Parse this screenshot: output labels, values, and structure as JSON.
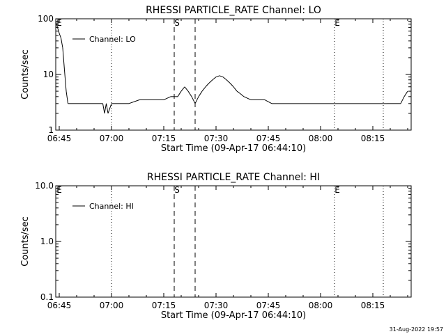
{
  "footer_timestamp": "31-Aug-2022 19:57",
  "chart_data": [
    {
      "type": "line",
      "title": "RHESSI PARTICLE_RATE Channel: LO",
      "xlabel": "Start Time (09-Apr-17 06:44:10)",
      "ylabel": "Counts/sec",
      "yscale": "log",
      "ylim": [
        1,
        100
      ],
      "xlim_minutes_after_0644": [
        0,
        102
      ],
      "xticks": [
        "06:45",
        "07:00",
        "07:15",
        "07:30",
        "07:45",
        "08:00",
        "08:15"
      ],
      "yticks": [
        "1",
        "10",
        "100"
      ],
      "legend": {
        "position": "top-left",
        "entries": [
          "Channel: LO"
        ]
      },
      "markers": [
        {
          "label": "E",
          "time": "06:44",
          "style": "edge"
        },
        {
          "label": "",
          "time": "07:00",
          "style": "dotted"
        },
        {
          "label": "S",
          "time": "07:18",
          "style": "dashed"
        },
        {
          "label": "",
          "time": "07:24",
          "style": "dashed"
        },
        {
          "label": "E",
          "time": "08:04",
          "style": "dotted"
        },
        {
          "label": "",
          "time": "08:18",
          "style": "dotted"
        }
      ],
      "series": [
        {
          "name": "Channel: LO",
          "points": [
            [
              0,
              90
            ],
            [
              0.5,
              70
            ],
            [
              1,
              55
            ],
            [
              1.5,
              45
            ],
            [
              2,
              30
            ],
            [
              2.5,
              12
            ],
            [
              3,
              5
            ],
            [
              3.5,
              3
            ],
            [
              5,
              3
            ],
            [
              8,
              3
            ],
            [
              11,
              3
            ],
            [
              13.5,
              3
            ],
            [
              14,
              2
            ],
            [
              14.5,
              3
            ],
            [
              15,
              2
            ],
            [
              16,
              3
            ],
            [
              18,
              3
            ],
            [
              21,
              3
            ],
            [
              24,
              3.5
            ],
            [
              27,
              3.5
            ],
            [
              31,
              3.5
            ],
            [
              33,
              4
            ],
            [
              35,
              4
            ],
            [
              36,
              5
            ],
            [
              37,
              6
            ],
            [
              38,
              5
            ],
            [
              39,
              4
            ],
            [
              40,
              3
            ],
            [
              41,
              4
            ],
            [
              42,
              5
            ],
            [
              43,
              6
            ],
            [
              44,
              7
            ],
            [
              45,
              8
            ],
            [
              46,
              9
            ],
            [
              47,
              9.5
            ],
            [
              48,
              9
            ],
            [
              49,
              8
            ],
            [
              50,
              7
            ],
            [
              51,
              6
            ],
            [
              52,
              5
            ],
            [
              53,
              4.5
            ],
            [
              54,
              4
            ],
            [
              56,
              3.5
            ],
            [
              60,
              3.5
            ],
            [
              62,
              3
            ],
            [
              66,
              3
            ],
            [
              70,
              3
            ],
            [
              75,
              3
            ],
            [
              80,
              3
            ],
            [
              85,
              3
            ],
            [
              90,
              3
            ],
            [
              95,
              3
            ],
            [
              98,
              3
            ],
            [
              99,
              3
            ],
            [
              100,
              4
            ],
            [
              101,
              5
            ]
          ]
        }
      ]
    },
    {
      "type": "line",
      "title": "RHESSI PARTICLE_RATE Channel: HI",
      "xlabel": "Start Time (09-Apr-17 06:44:10)",
      "ylabel": "Counts/sec",
      "yscale": "log",
      "ylim": [
        0.1,
        10
      ],
      "xlim_minutes_after_0644": [
        0,
        102
      ],
      "xticks": [
        "06:45",
        "07:00",
        "07:15",
        "07:30",
        "07:45",
        "08:00",
        "08:15"
      ],
      "yticks": [
        "0.1",
        "1.0",
        "10.0"
      ],
      "legend": {
        "position": "top-left",
        "entries": [
          "Channel: HI"
        ]
      },
      "markers": [
        {
          "label": "E",
          "time": "06:44",
          "style": "edge"
        },
        {
          "label": "",
          "time": "07:00",
          "style": "dotted"
        },
        {
          "label": "S",
          "time": "07:18",
          "style": "dashed"
        },
        {
          "label": "",
          "time": "07:24",
          "style": "dashed"
        },
        {
          "label": "E",
          "time": "08:04",
          "style": "dotted"
        },
        {
          "label": "",
          "time": "08:18",
          "style": "dotted"
        }
      ],
      "series": [
        {
          "name": "Channel: HI",
          "points": []
        }
      ]
    }
  ]
}
